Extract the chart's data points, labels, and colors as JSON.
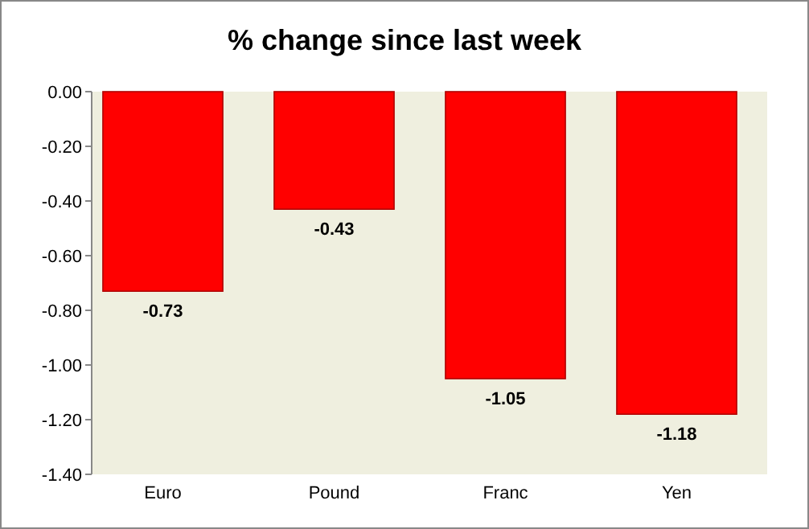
{
  "chart_data": {
    "type": "bar",
    "title": "% change since last week",
    "categories": [
      "Euro",
      "Pound",
      "Franc",
      "Yen"
    ],
    "values": [
      -0.73,
      -0.43,
      -1.05,
      -1.18
    ],
    "color": "#ff0000",
    "ylim": [
      -1.4,
      0
    ],
    "yticks": [
      {
        "value": 0,
        "label": "0.00"
      },
      {
        "value": -0.2,
        "label": "-0.20"
      },
      {
        "value": -0.4,
        "label": "-0.40"
      },
      {
        "value": -0.6,
        "label": "-0.60"
      },
      {
        "value": -0.8,
        "label": "-0.80"
      },
      {
        "value": -1,
        "label": "-1.00"
      },
      {
        "value": -1.2,
        "label": "-1.20"
      },
      {
        "value": -1.4,
        "label": "-1.40"
      }
    ],
    "data_labels": true,
    "grid": false
  }
}
